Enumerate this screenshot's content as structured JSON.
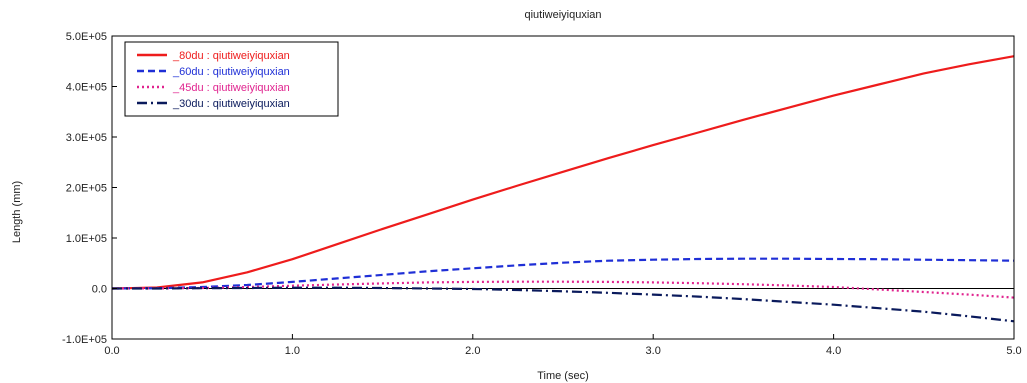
{
  "chart_data": {
    "type": "line",
    "title": "qiutiweiyiquxian",
    "xlabel": "Time (sec)",
    "ylabel": "Length (mm)",
    "xlim": [
      0,
      5
    ],
    "ylim": [
      -100000,
      500000
    ],
    "x_ticks": [
      0,
      1,
      2,
      3,
      4,
      5
    ],
    "x_tick_labels": [
      "0.0",
      "1.0",
      "2.0",
      "3.0",
      "4.0",
      "5.0"
    ],
    "y_ticks": [
      500000,
      400000,
      300000,
      200000,
      100000,
      0,
      -100000
    ],
    "y_tick_labels": [
      "5.0E+05",
      "4.0E+05",
      "3.0E+05",
      "2.0E+05",
      "1.0E+05",
      "0.0",
      "-1.0E+05"
    ],
    "grid": false,
    "legend_position": "top-left",
    "series": [
      {
        "name": "_80du : qiutiweiyiquxian",
        "color": "#ee1c1c",
        "style": "solid",
        "x": [
          0,
          0.25,
          0.5,
          0.75,
          1.0,
          1.25,
          1.5,
          1.75,
          2.0,
          2.25,
          2.5,
          2.75,
          3.0,
          3.25,
          3.5,
          3.75,
          4.0,
          4.25,
          4.5,
          4.75,
          5.0
        ],
        "y": [
          0,
          2000,
          12000,
          32000,
          58000,
          88000,
          118000,
          147000,
          176000,
          204000,
          231000,
          258000,
          284000,
          309000,
          334000,
          358000,
          382000,
          404000,
          426000,
          444000,
          460000
        ]
      },
      {
        "name": "_60du : qiutiweiyiquxian",
        "color": "#1f2fd6",
        "style": "dashed",
        "x": [
          0,
          0.25,
          0.5,
          0.75,
          1.0,
          1.25,
          1.5,
          1.75,
          2.0,
          2.25,
          2.5,
          2.75,
          3.0,
          3.25,
          3.5,
          3.75,
          4.0,
          4.25,
          4.5,
          4.75,
          5.0
        ],
        "y": [
          0,
          500,
          3000,
          7000,
          13000,
          20000,
          27000,
          34000,
          40000,
          46000,
          51000,
          55000,
          57000,
          58500,
          59000,
          59000,
          58500,
          58000,
          57000,
          56000,
          55000
        ]
      },
      {
        "name": "_45du : qiutiweiyiquxian",
        "color": "#e0248f",
        "style": "dotted",
        "x": [
          0,
          0.25,
          0.5,
          0.75,
          1.0,
          1.25,
          1.5,
          1.75,
          2.0,
          2.25,
          2.5,
          2.75,
          3.0,
          3.25,
          3.5,
          3.75,
          4.0,
          4.25,
          4.5,
          4.75,
          5.0
        ],
        "y": [
          0,
          200,
          1000,
          3000,
          5500,
          8000,
          10000,
          12000,
          13000,
          13500,
          13500,
          13000,
          12000,
          10500,
          8500,
          6000,
          3000,
          -2000,
          -7000,
          -12000,
          -18000
        ]
      },
      {
        "name": "_30du : qiutiweiyiquxian",
        "color": "#0a1a5c",
        "style": "dashdot",
        "x": [
          0,
          0.25,
          0.5,
          0.75,
          1.0,
          1.25,
          1.5,
          1.75,
          2.0,
          2.25,
          2.5,
          2.75,
          3.0,
          3.25,
          3.5,
          3.75,
          4.0,
          4.25,
          4.5,
          4.75,
          5.0
        ],
        "y": [
          0,
          0,
          500,
          1000,
          1500,
          1500,
          1000,
          0,
          -1000,
          -3000,
          -5500,
          -8500,
          -12000,
          -16000,
          -21000,
          -26500,
          -32000,
          -39000,
          -46000,
          -55000,
          -65000
        ]
      }
    ]
  }
}
